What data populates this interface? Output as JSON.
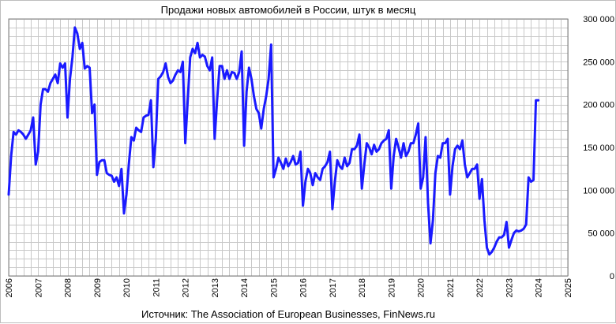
{
  "chart_data": {
    "type": "line",
    "title": "Продажи новых автомобилей в России, штук в месяц",
    "source": "Источник: The Association of European Businesses, FinNews.ru",
    "xlabel": "",
    "ylabel": "",
    "xlim": [
      2006,
      2025
    ],
    "ylim": [
      0,
      300000
    ],
    "x_ticks": [
      "2006",
      "2007",
      "2008",
      "2009",
      "2010",
      "2011",
      "2012",
      "2013",
      "2014",
      "2015",
      "2016",
      "2017",
      "2018",
      "2019",
      "2020",
      "2021",
      "2022",
      "2023",
      "2024",
      "2025"
    ],
    "y_ticks": [
      "0",
      "50 000",
      "100 000",
      "150 000",
      "200 000",
      "250 000",
      "300 000"
    ],
    "y_axis_side": "right",
    "grid": true,
    "legend": "none",
    "line_color": "#1a1aff",
    "series": [
      {
        "x": [
          2006.0,
          2006.083,
          2006.167,
          2006.25,
          2006.333,
          2006.417,
          2006.5,
          2006.583,
          2006.667,
          2006.75,
          2006.833,
          2006.917,
          2007.0,
          2007.083,
          2007.167,
          2007.25,
          2007.333,
          2007.417,
          2007.5,
          2007.583,
          2007.667,
          2007.75,
          2007.833,
          2007.917,
          2008.0,
          2008.083,
          2008.167,
          2008.25,
          2008.333,
          2008.417,
          2008.5,
          2008.583,
          2008.667,
          2008.75,
          2008.833,
          2008.917,
          2009.0,
          2009.083,
          2009.167,
          2009.25,
          2009.333,
          2009.417,
          2009.5,
          2009.583,
          2009.667,
          2009.75,
          2009.833,
          2009.917,
          2010.0,
          2010.083,
          2010.167,
          2010.25,
          2010.333,
          2010.417,
          2010.5,
          2010.583,
          2010.667,
          2010.75,
          2010.833,
          2010.917,
          2011.0,
          2011.083,
          2011.167,
          2011.25,
          2011.333,
          2011.417,
          2011.5,
          2011.583,
          2011.667,
          2011.75,
          2011.833,
          2011.917,
          2012.0,
          2012.083,
          2012.167,
          2012.25,
          2012.333,
          2012.417,
          2012.5,
          2012.583,
          2012.667,
          2012.75,
          2012.833,
          2012.917,
          2013.0,
          2013.083,
          2013.167,
          2013.25,
          2013.333,
          2013.417,
          2013.5,
          2013.583,
          2013.667,
          2013.75,
          2013.833,
          2013.917,
          2014.0,
          2014.083,
          2014.167,
          2014.25,
          2014.333,
          2014.417,
          2014.5,
          2014.583,
          2014.667,
          2014.75,
          2014.833,
          2014.917,
          2015.0,
          2015.083,
          2015.167,
          2015.25,
          2015.333,
          2015.417,
          2015.5,
          2015.583,
          2015.667,
          2015.75,
          2015.833,
          2015.917,
          2016.0,
          2016.083,
          2016.167,
          2016.25,
          2016.333,
          2016.417,
          2016.5,
          2016.583,
          2016.667,
          2016.75,
          2016.833,
          2016.917,
          2017.0,
          2017.083,
          2017.167,
          2017.25,
          2017.333,
          2017.417,
          2017.5,
          2017.583,
          2017.667,
          2017.75,
          2017.833,
          2017.917,
          2018.0,
          2018.083,
          2018.167,
          2018.25,
          2018.333,
          2018.417,
          2018.5,
          2018.583,
          2018.667,
          2018.75,
          2018.833,
          2018.917,
          2019.0,
          2019.083,
          2019.167,
          2019.25,
          2019.333,
          2019.417,
          2019.5,
          2019.583,
          2019.667,
          2019.75,
          2019.833,
          2019.917,
          2020.0,
          2020.083,
          2020.167,
          2020.25,
          2020.333,
          2020.417,
          2020.5,
          2020.583,
          2020.667,
          2020.75,
          2020.833,
          2020.917,
          2021.0,
          2021.083,
          2021.167,
          2021.25,
          2021.333,
          2021.417,
          2021.5,
          2021.583,
          2021.667,
          2021.75,
          2021.833,
          2021.917,
          2022.0,
          2022.083,
          2022.167,
          2022.25,
          2022.333,
          2022.417,
          2022.5,
          2022.583,
          2022.667,
          2022.75,
          2022.833,
          2022.917,
          2023.0,
          2023.083,
          2023.167,
          2023.25,
          2023.333,
          2023.417,
          2023.5,
          2023.583,
          2023.667,
          2023.75,
          2023.833,
          2023.917,
          2024.0
        ],
        "values": [
          95000,
          140000,
          168000,
          165000,
          170000,
          168000,
          165000,
          160000,
          165000,
          170000,
          185000,
          130000,
          145000,
          200000,
          218000,
          218000,
          215000,
          225000,
          230000,
          235000,
          225000,
          248000,
          243000,
          248000,
          185000,
          230000,
          255000,
          290000,
          283000,
          265000,
          272000,
          242000,
          245000,
          243000,
          190000,
          200000,
          118000,
          133000,
          135000,
          135000,
          120000,
          118000,
          117000,
          110000,
          115000,
          105000,
          125000,
          73000,
          95000,
          130000,
          162000,
          158000,
          173000,
          170000,
          168000,
          185000,
          187000,
          188000,
          205000,
          127000,
          160000,
          230000,
          233000,
          238000,
          248000,
          232000,
          225000,
          228000,
          235000,
          240000,
          238000,
          250000,
          155000,
          205000,
          255000,
          265000,
          260000,
          272000,
          255000,
          258000,
          256000,
          245000,
          240000,
          255000,
          160000,
          205000,
          245000,
          245000,
          230000,
          240000,
          230000,
          238000,
          237000,
          230000,
          238000,
          262000,
          152000,
          215000,
          243000,
          230000,
          210000,
          195000,
          190000,
          172000,
          195000,
          210000,
          230000,
          270000,
          115000,
          125000,
          138000,
          132000,
          125000,
          137000,
          128000,
          133000,
          140000,
          130000,
          132000,
          145000,
          82000,
          110000,
          125000,
          120000,
          106000,
          120000,
          115000,
          112000,
          125000,
          128000,
          133000,
          145000,
          78000,
          110000,
          135000,
          128000,
          125000,
          138000,
          128000,
          132000,
          148000,
          148000,
          152000,
          165000,
          102000,
          130000,
          155000,
          150000,
          142000,
          153000,
          145000,
          148000,
          155000,
          158000,
          160000,
          170000,
          102000,
          140000,
          160000,
          150000,
          138000,
          155000,
          140000,
          145000,
          155000,
          155000,
          165000,
          178000,
          102000,
          115000,
          162000,
          85000,
          38000,
          65000,
          120000,
          140000,
          138000,
          155000,
          155000,
          160000,
          95000,
          128000,
          148000,
          152000,
          148000,
          158000,
          130000,
          115000,
          120000,
          125000,
          125000,
          130000,
          90000,
          113000,
          65000,
          33000,
          25000,
          28000,
          33000,
          40000,
          45000,
          45000,
          48000,
          63000,
          33000,
          42000,
          50000,
          53000,
          52000,
          53000,
          55000,
          60000,
          115000,
          110000,
          112000,
          205000,
          205000
        ]
      }
    ]
  }
}
